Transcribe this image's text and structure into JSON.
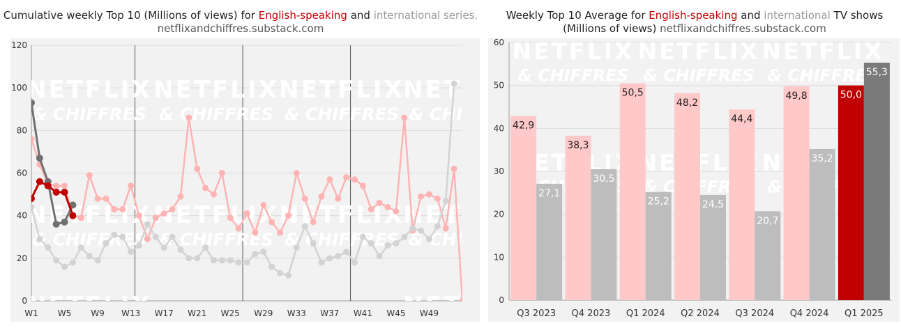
{
  "source": "netflixandchiffres.substack.com",
  "watermark": {
    "line1": "NETFLIX",
    "line2": "& CHIFFRES"
  },
  "left_title": {
    "p1": "Cumulative weekly Top 10 (Millions of views) for ",
    "eng": "English-speaking",
    "p2": " and ",
    "intl": "international series.",
    "source": "netflixandchiffres.substack.com"
  },
  "right_title": {
    "p1": "Weekly Top 10 Average for ",
    "eng": "English-speaking",
    "p2": " and ",
    "intl": "international",
    "p3": " TV shows",
    "line2": "(Millions of views) ",
    "source": "netflixandchiffres.substack.com"
  },
  "colors": {
    "eng_2024": "#ffb3b3",
    "intl_2024": "#d3d3d3",
    "eng_2025": "#c00000",
    "intl_2025": "#707070",
    "bar_eng": "#ffc9c9",
    "bar_intl": "#bdbdbd",
    "bar_eng_hl": "#c00000",
    "bar_intl_hl": "#7a7a7a",
    "plot_bg": "#f2f2f2"
  },
  "chart_data": [
    {
      "type": "line",
      "ylim": [
        0,
        120
      ],
      "yticks": [
        0,
        20,
        40,
        60,
        80,
        100,
        120
      ],
      "xlim": [
        1,
        53
      ],
      "xticks": [
        {
          "x": 1,
          "label": "W1"
        },
        {
          "x": 5,
          "label": "W5"
        },
        {
          "x": 9,
          "label": "W9"
        },
        {
          "x": 13,
          "label": "W13"
        },
        {
          "x": 17,
          "label": "W17"
        },
        {
          "x": 21,
          "label": "W21"
        },
        {
          "x": 25,
          "label": "W25"
        },
        {
          "x": 29,
          "label": "W29"
        },
        {
          "x": 33,
          "label": "W33"
        },
        {
          "x": 37,
          "label": "W37"
        },
        {
          "x": 41,
          "label": "W41"
        },
        {
          "x": 45,
          "label": "W45"
        },
        {
          "x": 49,
          "label": "W49"
        }
      ],
      "vlines": [
        13,
        26,
        39
      ],
      "series": [
        {
          "key": "eng_2024",
          "x": [
            1,
            2,
            3,
            4,
            5,
            6,
            7,
            8,
            9,
            10,
            11,
            12,
            13,
            14,
            15,
            16,
            17,
            18,
            19,
            20,
            21,
            22,
            23,
            24,
            25,
            26,
            27,
            28,
            29,
            30,
            31,
            32,
            33,
            34,
            35,
            36,
            37,
            38,
            39,
            40,
            41,
            42,
            43,
            44,
            45,
            46,
            47,
            48,
            49,
            50,
            51,
            52,
            53
          ],
          "values": [
            76,
            64,
            55,
            54,
            54,
            40,
            39,
            59,
            48,
            48,
            43,
            43,
            54,
            40,
            29,
            39,
            41,
            43,
            49,
            86,
            62,
            53,
            50,
            60,
            39,
            34,
            41,
            32,
            45,
            37,
            32,
            40,
            60,
            48,
            37,
            49,
            57,
            48,
            58,
            57,
            54,
            43,
            46,
            44,
            42,
            86,
            33,
            49,
            50,
            48,
            34,
            62,
            0
          ]
        },
        {
          "key": "intl_2024",
          "x": [
            1,
            2,
            3,
            4,
            5,
            6,
            7,
            8,
            9,
            10,
            11,
            12,
            13,
            14,
            15,
            16,
            17,
            18,
            19,
            20,
            21,
            22,
            23,
            24,
            25,
            26,
            27,
            28,
            29,
            30,
            31,
            32,
            33,
            34,
            35,
            36,
            37,
            38,
            39,
            40,
            41,
            42,
            43,
            44,
            45,
            46,
            47,
            48,
            49,
            50,
            51,
            52
          ],
          "values": [
            44,
            29,
            25,
            19,
            16,
            18,
            25,
            21,
            19,
            27,
            31,
            30,
            23,
            26,
            36,
            30,
            25,
            30,
            24,
            20,
            20,
            25,
            19,
            19,
            19,
            18,
            18,
            22,
            23,
            16,
            13,
            12,
            25,
            35,
            27,
            18,
            20,
            21,
            23,
            18,
            30,
            27,
            21,
            26,
            27,
            30,
            34,
            33,
            29,
            35,
            47,
            102
          ]
        },
        {
          "key": "eng_2025",
          "x": [
            1,
            2,
            3,
            4,
            5,
            6
          ],
          "values": [
            48,
            56,
            54,
            51,
            51,
            40
          ]
        },
        {
          "key": "intl_2025",
          "x": [
            1,
            2,
            3,
            4,
            5,
            6
          ],
          "values": [
            93,
            67,
            56,
            36,
            37,
            45
          ]
        }
      ]
    },
    {
      "type": "bar",
      "ylim": [
        0,
        60
      ],
      "yticks": [
        0,
        10,
        20,
        30,
        40,
        50,
        60
      ],
      "categories": [
        "Q3 2023",
        "Q4 2023",
        "Q1 2024",
        "Q2 2024",
        "Q3 2024",
        "Q4 2024",
        "Q1 2025"
      ],
      "series": [
        {
          "key": "english",
          "values": [
            42.9,
            38.3,
            50.5,
            48.2,
            44.4,
            49.8,
            50.0
          ],
          "labels": [
            "42,9",
            "38,3",
            "50,5",
            "48,2",
            "44,4",
            "49,8",
            "50,0"
          ]
        },
        {
          "key": "international",
          "values": [
            27.1,
            30.5,
            25.2,
            24.5,
            20.7,
            35.2,
            55.3
          ],
          "labels": [
            "27,1",
            "30,5",
            "25,2",
            "24,5",
            "20,7",
            "35,2",
            "55,3"
          ]
        }
      ]
    }
  ]
}
